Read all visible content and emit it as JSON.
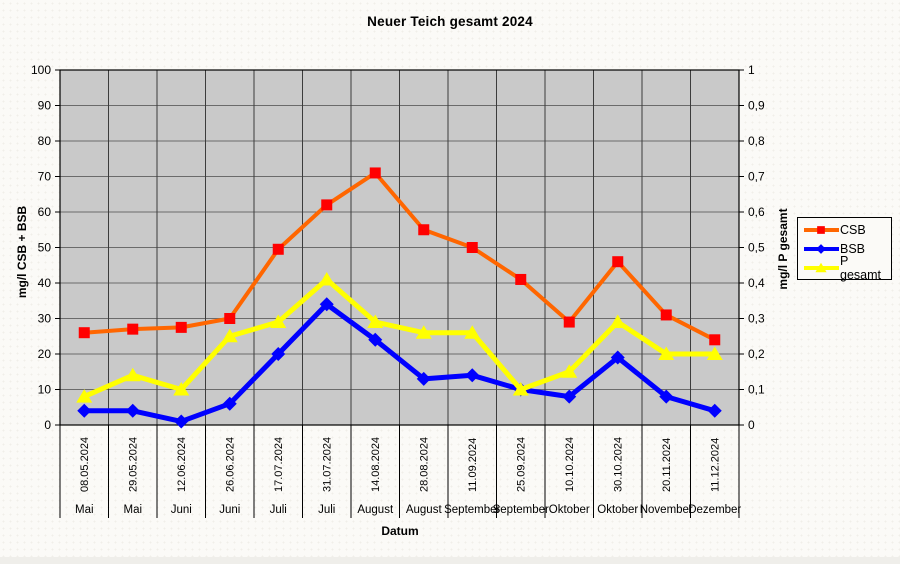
{
  "chart_data": {
    "type": "line",
    "title": "Neuer Teich gesamt 2024",
    "categories": [
      "08.05.2024",
      "29.05.2024",
      "12.06.2024",
      "26.06.2024",
      "17.07.2024",
      "31.07.2024",
      "14.08.2024",
      "28.08.2024",
      "11.09.2024",
      "25.09.2024",
      "10.10.2024",
      "30.10.2024",
      "20.11.2024",
      "11.12.2024"
    ],
    "month_labels": [
      "Mai",
      "Mai",
      "Juni",
      "Juni",
      "Juli",
      "Juli",
      "August",
      "August",
      "September",
      "September",
      "Oktober",
      "Oktober",
      "November",
      "Dezember"
    ],
    "x_axis_title": "Datum",
    "left_axis": {
      "title": "mg/l CSB + BSB",
      "min": 0,
      "max": 100,
      "step": 10,
      "tick_labels": [
        "100",
        "90",
        "80",
        "70",
        "60",
        "50",
        "40",
        "30",
        "20",
        "10",
        "0"
      ]
    },
    "right_axis": {
      "title": "mg/l P gesamt",
      "min": 0,
      "max": 1,
      "step": 0.1,
      "tick_labels": [
        "1",
        "0,9",
        "0,8",
        "0,7",
        "0,6",
        "0,5",
        "0,4",
        "0,3",
        "0,2",
        "0,1",
        "0"
      ]
    },
    "series": [
      {
        "name": "CSB",
        "axis": "left",
        "color": "#ff6600",
        "marker": "square",
        "marker_color": "#ff0000",
        "values": [
          26,
          27,
          27.5,
          30,
          49.5,
          62,
          71,
          55,
          50,
          41,
          29,
          46,
          31,
          24
        ]
      },
      {
        "name": "BSB",
        "axis": "left",
        "color": "#0000ff",
        "marker": "diamond",
        "marker_color": "#0000ff",
        "values": [
          4,
          4,
          1,
          6,
          20,
          34,
          24,
          13,
          14,
          10,
          8,
          19,
          8,
          4
        ]
      },
      {
        "name": "P gesamt",
        "axis": "right",
        "color": "#ffff00",
        "marker": "triangle",
        "marker_color": "#ffff00",
        "values": [
          0.08,
          0.14,
          0.1,
          0.25,
          0.29,
          0.41,
          0.29,
          0.26,
          0.26,
          0.1,
          0.15,
          0.29,
          0.2,
          0.2
        ]
      }
    ],
    "legend": {
      "position": "right",
      "entries": [
        "CSB",
        "BSB",
        "P gesamt"
      ]
    },
    "grid": true,
    "plot": {
      "background": "#c9c9c9",
      "h_grid_color": "#6b6b6b",
      "v_grid_color": "#3c3c3c",
      "border_color": "#000000"
    }
  }
}
